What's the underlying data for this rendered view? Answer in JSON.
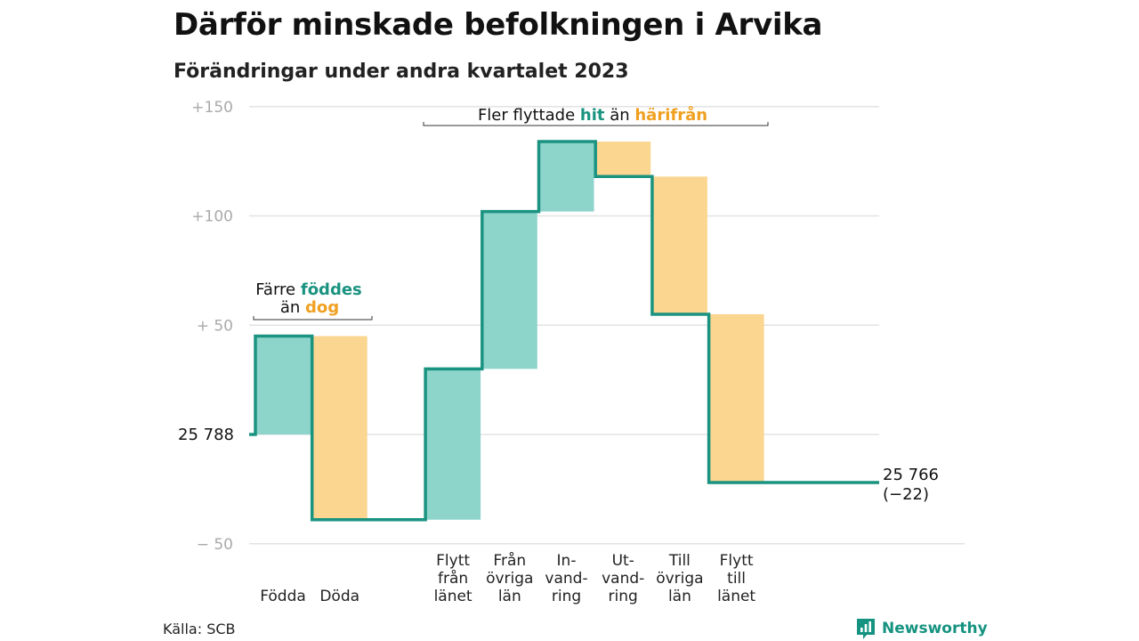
{
  "title": "Därför minskade befolkningen i Arvika",
  "subtitle": "Förändringar under andra kvartalet 2023",
  "source": "Källa: SCB",
  "brand": "Newsworthy",
  "colors": {
    "increase": "#8dd4cb",
    "decrease": "#fad690",
    "line": "#1a9380",
    "grid": "#e3e3e3",
    "axis_text": "#aaaaaa",
    "accent_teal": "#1a9380",
    "accent_orange": "#f0a020"
  },
  "chart_data": {
    "type": "waterfall",
    "start": {
      "label": "25  788",
      "value": 25788
    },
    "end": {
      "label": "25 766",
      "change_label": "(−22)",
      "value": 25766
    },
    "ylim": [
      -50,
      150
    ],
    "y_ticks": [
      {
        "value": 150,
        "label": "+150"
      },
      {
        "value": 100,
        "label": "+100"
      },
      {
        "value": 50,
        "label": "+  50"
      },
      {
        "value": 0,
        "label": ""
      },
      {
        "value": -50,
        "label": "−  50"
      }
    ],
    "steps": [
      {
        "label": [
          "Födda"
        ],
        "value": 45
      },
      {
        "label": [
          "Döda"
        ],
        "value": -84
      },
      {
        "label": [],
        "value": 0
      },
      {
        "label": [
          "Flytt",
          "från",
          "länet"
        ],
        "value": 69
      },
      {
        "label": [
          "Från",
          "övriga",
          "län"
        ],
        "value": 72
      },
      {
        "label": [
          "In-",
          "vand-",
          "ring"
        ],
        "value": 32
      },
      {
        "label": [
          "Ut-",
          "vand-",
          "ring"
        ],
        "value": -16
      },
      {
        "label": [
          "Till",
          "övriga",
          "län"
        ],
        "value": -63
      },
      {
        "label": [
          "Flytt",
          "till",
          "länet"
        ],
        "value": -77
      }
    ],
    "annotations": [
      {
        "parts": [
          {
            "text": "Färre ",
            "style": "plain"
          },
          {
            "text": "föddes",
            "style": "teal"
          }
        ],
        "line2": [
          {
            "text": "än ",
            "style": "plain"
          },
          {
            "text": "dog",
            "style": "orange"
          }
        ]
      },
      {
        "parts": [
          {
            "text": "Fler flyttade ",
            "style": "plain"
          },
          {
            "text": "hit",
            "style": "teal"
          },
          {
            "text": " än ",
            "style": "plain"
          },
          {
            "text": "härifrån",
            "style": "orange"
          }
        ]
      }
    ]
  }
}
